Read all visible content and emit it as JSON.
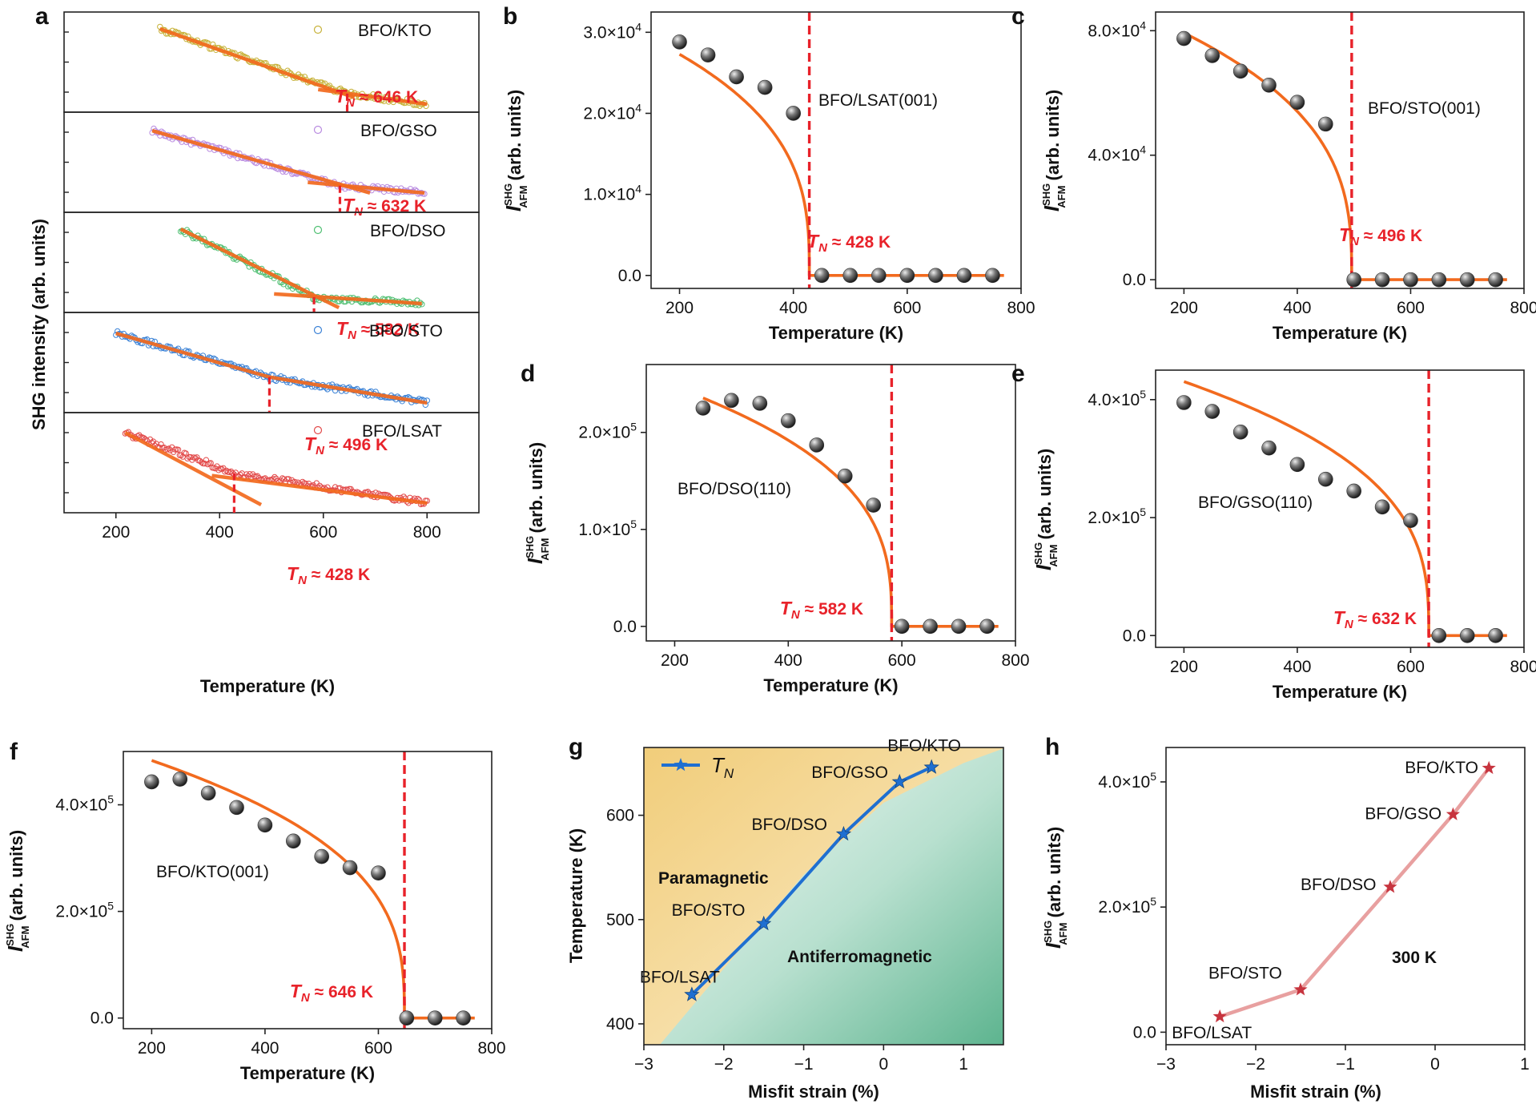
{
  "colors": {
    "fit": "#f26a1e",
    "tn_line": "#e8222a",
    "tn_text": "#e8222a",
    "ball": "#6b6b6b",
    "g_line": "#1f6fd1",
    "h_line": "#e8a0a0",
    "h_star": "#c7343e",
    "paramag": "#f3d98e",
    "antiferro": "#7cc3a6",
    "open_markers": [
      "#c7b23a",
      "#b98be0",
      "#4fbf72",
      "#3b82d6",
      "#e24a4a"
    ]
  },
  "chart_data": [
    {
      "id": "a",
      "type": "scatter",
      "panel_letter": "a",
      "xlabel": "Temperature (K)",
      "ylabel": "SHG intensity (arb. units)",
      "xlim": [
        100,
        900
      ],
      "xticks": [
        200,
        400,
        600,
        800
      ],
      "x_tick_labels": [
        "200",
        "400",
        "600",
        "800"
      ],
      "stacks": [
        {
          "sample": "BFO/KTO",
          "tn_label": "T_N ≈ 646 K",
          "tn_prefix": "T",
          "tn_sub": "N",
          "tn_text": " ≈ 646 K",
          "tn": 646,
          "t_start": 285,
          "t_end": 800,
          "y_start": 0.97,
          "y_tn": 0.17,
          "y_end": 0.04,
          "fit1": [
            [
              285,
              0.97
            ],
            [
              660,
              0.12
            ]
          ],
          "fit2": [
            [
              590,
              0.22
            ],
            [
              800,
              0.04
            ]
          ]
        },
        {
          "sample": "BFO/GSO",
          "tn_label": "T_N ≈ 632 K",
          "tn_prefix": "T",
          "tn_sub": "N",
          "tn_text": " ≈ 632 K",
          "tn": 632,
          "t_start": 270,
          "t_end": 795,
          "y_start": 0.95,
          "y_tn": 0.27,
          "y_end": 0.18,
          "fit1": [
            [
              270,
              0.95
            ],
            [
              690,
              0.18
            ]
          ],
          "fit2": [
            [
              570,
              0.31
            ],
            [
              795,
              0.18
            ]
          ]
        },
        {
          "sample": "BFO/DSO",
          "tn_label": "T_N ≈ 582 K",
          "tn_prefix": "T",
          "tn_sub": "N",
          "tn_text": " ≈ 582 K",
          "tn": 582,
          "t_start": 325,
          "t_end": 790,
          "y_start": 0.97,
          "y_tn": 0.13,
          "y_end": 0.05,
          "fit1": [
            [
              325,
              0.97
            ],
            [
              630,
              0.0
            ]
          ],
          "fit2": [
            [
              505,
              0.17
            ],
            [
              790,
              0.05
            ]
          ]
        },
        {
          "sample": "BFO/STO",
          "tn_label": "T_N ≈ 496 K",
          "tn_prefix": "T",
          "tn_sub": "N",
          "tn_text": " ≈ 496 K",
          "tn": 496,
          "t_start": 200,
          "t_end": 800,
          "y_start": 0.92,
          "y_tn": 0.38,
          "y_end": 0.06,
          "fit1": [
            [
              200,
              0.92
            ],
            [
              496,
              0.38
            ]
          ],
          "fit2": [
            [
              496,
              0.38
            ],
            [
              800,
              0.06
            ]
          ]
        },
        {
          "sample": "BFO/LSAT",
          "tn_label": "T_N ≈ 428 K",
          "tn_prefix": "T",
          "tn_sub": "N",
          "tn_text": " ≈ 428 K",
          "tn": 428,
          "t_start": 218,
          "t_end": 800,
          "y_start": 0.93,
          "y_tn": 0.43,
          "y_end": 0.06,
          "fit1": [
            [
              218,
              0.93
            ],
            [
              480,
              0.04
            ]
          ],
          "fit2": [
            [
              385,
              0.4
            ],
            [
              800,
              0.06
            ]
          ]
        }
      ]
    },
    {
      "id": "b",
      "type": "scatter",
      "panel_letter": "b",
      "sample_label": "BFO/LSAT(001)",
      "tn": 428,
      "tn_prefix": "T",
      "tn_sub": "N",
      "tn_text": " ≈ 428 K",
      "xlabel": "Temperature (K)",
      "ylabel": "I_AFM^SHG (arb. units)",
      "ylabel_main": "I",
      "ylabel_sup": "SHG",
      "ylabel_sub": "AFM",
      "ylabel_rest": " (arb. units)",
      "xlim": [
        150,
        800
      ],
      "ylim": [
        -1600,
        32500
      ],
      "xticks": [
        200,
        400,
        600,
        800
      ],
      "x_tick_labels": [
        "200",
        "400",
        "600",
        "800"
      ],
      "yticks": [
        0,
        10000,
        20000,
        30000
      ],
      "y_tick_labels": [
        {
          "m": "0.0",
          "e": ""
        },
        {
          "m": "1.0×10",
          "e": "4"
        },
        {
          "m": "2.0×10",
          "e": "4"
        },
        {
          "m": "3.0×10",
          "e": "4"
        }
      ],
      "points": [
        [
          200,
          28800
        ],
        [
          250,
          27200
        ],
        [
          300,
          24500
        ],
        [
          350,
          23200
        ],
        [
          400,
          20000
        ],
        [
          450,
          0
        ],
        [
          500,
          0
        ],
        [
          550,
          0
        ],
        [
          600,
          0
        ],
        [
          650,
          0
        ],
        [
          700,
          0
        ],
        [
          750,
          0
        ]
      ],
      "fit": {
        "t_start": 200,
        "amplitude": 33800,
        "beta": 0.34,
        "t_end": 770
      }
    },
    {
      "id": "c",
      "type": "scatter",
      "panel_letter": "c",
      "sample_label": "BFO/STO(001)",
      "tn": 496,
      "tn_prefix": "T",
      "tn_sub": "N",
      "tn_text": " ≈ 496 K",
      "xlabel": "Temperature (K)",
      "ylabel": "I_AFM^SHG (arb. units)",
      "ylabel_main": "I",
      "ylabel_sup": "SHG",
      "ylabel_sub": "AFM",
      "ylabel_rest": " (arb. units)",
      "xlim": [
        150,
        800
      ],
      "ylim": [
        -2800,
        86000
      ],
      "xticks": [
        200,
        400,
        600,
        800
      ],
      "x_tick_labels": [
        "200",
        "400",
        "600",
        "800"
      ],
      "yticks": [
        0,
        40000,
        80000
      ],
      "y_tick_labels": [
        {
          "m": "0.0",
          "e": ""
        },
        {
          "m": "4.0×10",
          "e": "4"
        },
        {
          "m": "8.0×10",
          "e": "4"
        }
      ],
      "points": [
        [
          200,
          77500
        ],
        [
          250,
          72000
        ],
        [
          300,
          67000
        ],
        [
          350,
          62500
        ],
        [
          400,
          57000
        ],
        [
          450,
          50000
        ],
        [
          500,
          0
        ],
        [
          550,
          0
        ],
        [
          600,
          0
        ],
        [
          650,
          0
        ],
        [
          700,
          0
        ],
        [
          750,
          0
        ]
      ],
      "fit": {
        "t_start": 200,
        "amplitude": 94500,
        "beta": 0.34,
        "t_end": 770
      }
    },
    {
      "id": "d",
      "type": "scatter",
      "panel_letter": "d",
      "sample_label": "BFO/DSO(110)",
      "tn": 582,
      "tn_prefix": "T",
      "tn_sub": "N",
      "tn_text": " ≈ 582 K",
      "xlabel": "Temperature (K)",
      "ylabel": "I_AFM^SHG (arb. units)",
      "ylabel_main": "I",
      "ylabel_sup": "SHG",
      "ylabel_sub": "AFM",
      "ylabel_rest": " (arb. units)",
      "xlim": [
        150,
        800
      ],
      "ylim": [
        -15000,
        270000
      ],
      "xticks": [
        200,
        400,
        600,
        800
      ],
      "x_tick_labels": [
        "200",
        "400",
        "600",
        "800"
      ],
      "yticks": [
        0,
        100000,
        200000
      ],
      "y_tick_labels": [
        {
          "m": "0.0",
          "e": ""
        },
        {
          "m": "1.0×10",
          "e": "5"
        },
        {
          "m": "2.0×10",
          "e": "5"
        }
      ],
      "points": [
        [
          250,
          225000
        ],
        [
          300,
          233000
        ],
        [
          350,
          230000
        ],
        [
          400,
          212000
        ],
        [
          450,
          187000
        ],
        [
          500,
          155000
        ],
        [
          550,
          125000
        ],
        [
          600,
          0
        ],
        [
          650,
          0
        ],
        [
          700,
          0
        ],
        [
          750,
          0
        ]
      ],
      "fit": {
        "t_start": 250,
        "amplitude": 285000,
        "beta": 0.34,
        "t_end": 770
      }
    },
    {
      "id": "e",
      "type": "scatter",
      "panel_letter": "e",
      "sample_label": "BFO/GSO(110)",
      "tn": 632,
      "tn_prefix": "T",
      "tn_sub": "N",
      "tn_text": " ≈ 632 K",
      "xlabel": "Temperature (K)",
      "ylabel": "I_AFM^SHG (arb. units)",
      "ylabel_main": "I",
      "ylabel_sup": "SHG",
      "ylabel_sub": "AFM",
      "ylabel_rest": " (arb. units)",
      "xlim": [
        150,
        800
      ],
      "ylim": [
        -20000,
        450000
      ],
      "xticks": [
        200,
        400,
        600,
        800
      ],
      "x_tick_labels": [
        "200",
        "400",
        "600",
        "800"
      ],
      "yticks": [
        0,
        200000,
        400000
      ],
      "y_tick_labels": [
        {
          "m": "0.0",
          "e": ""
        },
        {
          "m": "2.0×10",
          "e": "5"
        },
        {
          "m": "4.0×10",
          "e": "5"
        }
      ],
      "points": [
        [
          200,
          395000
        ],
        [
          250,
          380000
        ],
        [
          300,
          345000
        ],
        [
          350,
          318000
        ],
        [
          400,
          290000
        ],
        [
          450,
          265000
        ],
        [
          500,
          245000
        ],
        [
          550,
          218000
        ],
        [
          600,
          195000
        ],
        [
          650,
          0
        ],
        [
          700,
          0
        ],
        [
          750,
          0
        ]
      ],
      "fit": {
        "t_start": 200,
        "amplitude": 490000,
        "beta": 0.34,
        "t_end": 770
      }
    },
    {
      "id": "f",
      "type": "scatter",
      "panel_letter": "f",
      "sample_label": "BFO/KTO(001)",
      "tn": 646,
      "tn_prefix": "T",
      "tn_sub": "N",
      "tn_text": " ≈ 646 K",
      "xlabel": "Temperature (K)",
      "ylabel": "I_AFM^SHG (arb. units)",
      "ylabel_main": "I",
      "ylabel_sup": "SHG",
      "ylabel_sub": "AFM",
      "ylabel_rest": " (arb. units)",
      "xlim": [
        150,
        800
      ],
      "ylim": [
        -20000,
        500000
      ],
      "xticks": [
        200,
        400,
        600,
        800
      ],
      "x_tick_labels": [
        "200",
        "400",
        "600",
        "800"
      ],
      "yticks": [
        0,
        200000,
        400000
      ],
      "y_tick_labels": [
        {
          "m": "0.0",
          "e": ""
        },
        {
          "m": "2.0×10",
          "e": "5"
        },
        {
          "m": "4.0×10",
          "e": "5"
        }
      ],
      "points": [
        [
          200,
          443000
        ],
        [
          250,
          448000
        ],
        [
          300,
          422000
        ],
        [
          350,
          395000
        ],
        [
          400,
          362000
        ],
        [
          450,
          332000
        ],
        [
          500,
          303000
        ],
        [
          550,
          282000
        ],
        [
          600,
          272000
        ],
        [
          650,
          0
        ],
        [
          700,
          0
        ],
        [
          750,
          0
        ]
      ],
      "fit": {
        "t_start": 200,
        "amplitude": 548000,
        "beta": 0.34,
        "t_end": 770
      }
    },
    {
      "id": "g",
      "type": "line",
      "panel_letter": "g",
      "xlabel": "Misfit strain (%)",
      "ylabel": "Temperature (K)",
      "xlim": [
        -3,
        1.5
      ],
      "ylim": [
        380,
        665
      ],
      "xticks": [
        -3,
        -2,
        -1,
        0,
        1
      ],
      "x_tick_labels": [
        "−3",
        "−2",
        "−1",
        "0",
        "1"
      ],
      "yticks": [
        400,
        500,
        600
      ],
      "y_tick_labels": [
        "400",
        "500",
        "600"
      ],
      "legend": {
        "name": "T_N",
        "main": "T",
        "sub": "N",
        "position": "top-left"
      },
      "regions": [
        "Paramagnetic",
        "Antiferromagnetic"
      ],
      "boundary": [
        [
          -2.8,
          380
        ],
        [
          -2.0,
          453
        ],
        [
          -1.0,
          543
        ],
        [
          0.0,
          612
        ],
        [
          1.0,
          650
        ],
        [
          1.5,
          664
        ]
      ],
      "series": [
        {
          "name": "T_N",
          "x": [
            -2.4,
            -1.5,
            -0.5,
            0.2,
            0.6
          ],
          "y": [
            428,
            496,
            582,
            632,
            646
          ],
          "labels": [
            "BFO/LSAT",
            "BFO/STO",
            "BFO/DSO",
            "BFO/GSO",
            "BFO/KTO"
          ]
        }
      ]
    },
    {
      "id": "h",
      "type": "line",
      "panel_letter": "h",
      "xlabel": "Misfit strain (%)",
      "ylabel": "I_AFM^SHG (arb. units)",
      "ylabel_main": "I",
      "ylabel_sup": "SHG",
      "ylabel_sub": "AFM",
      "ylabel_rest": " (arb. units)",
      "annotation": "300 K",
      "xlim": [
        -3,
        1
      ],
      "ylim": [
        -20000,
        455000
      ],
      "xticks": [
        -3,
        -2,
        -1,
        0,
        1
      ],
      "x_tick_labels": [
        "−3",
        "−2",
        "−1",
        "0",
        "1"
      ],
      "yticks": [
        0,
        200000,
        400000
      ],
      "y_tick_labels": [
        {
          "m": "0.0",
          "e": ""
        },
        {
          "m": "2.0×10",
          "e": "5"
        },
        {
          "m": "4.0×10",
          "e": "5"
        }
      ],
      "series": [
        {
          "name": "I_AFM^SHG at 300 K",
          "x": [
            -2.4,
            -1.5,
            -0.5,
            0.2,
            0.6
          ],
          "y": [
            25000,
            68000,
            232000,
            348000,
            422000
          ],
          "labels": [
            "BFO/LSAT",
            "BFO/STO",
            "BFO/DSO",
            "BFO/GSO",
            "BFO/KTO"
          ]
        }
      ]
    }
  ]
}
